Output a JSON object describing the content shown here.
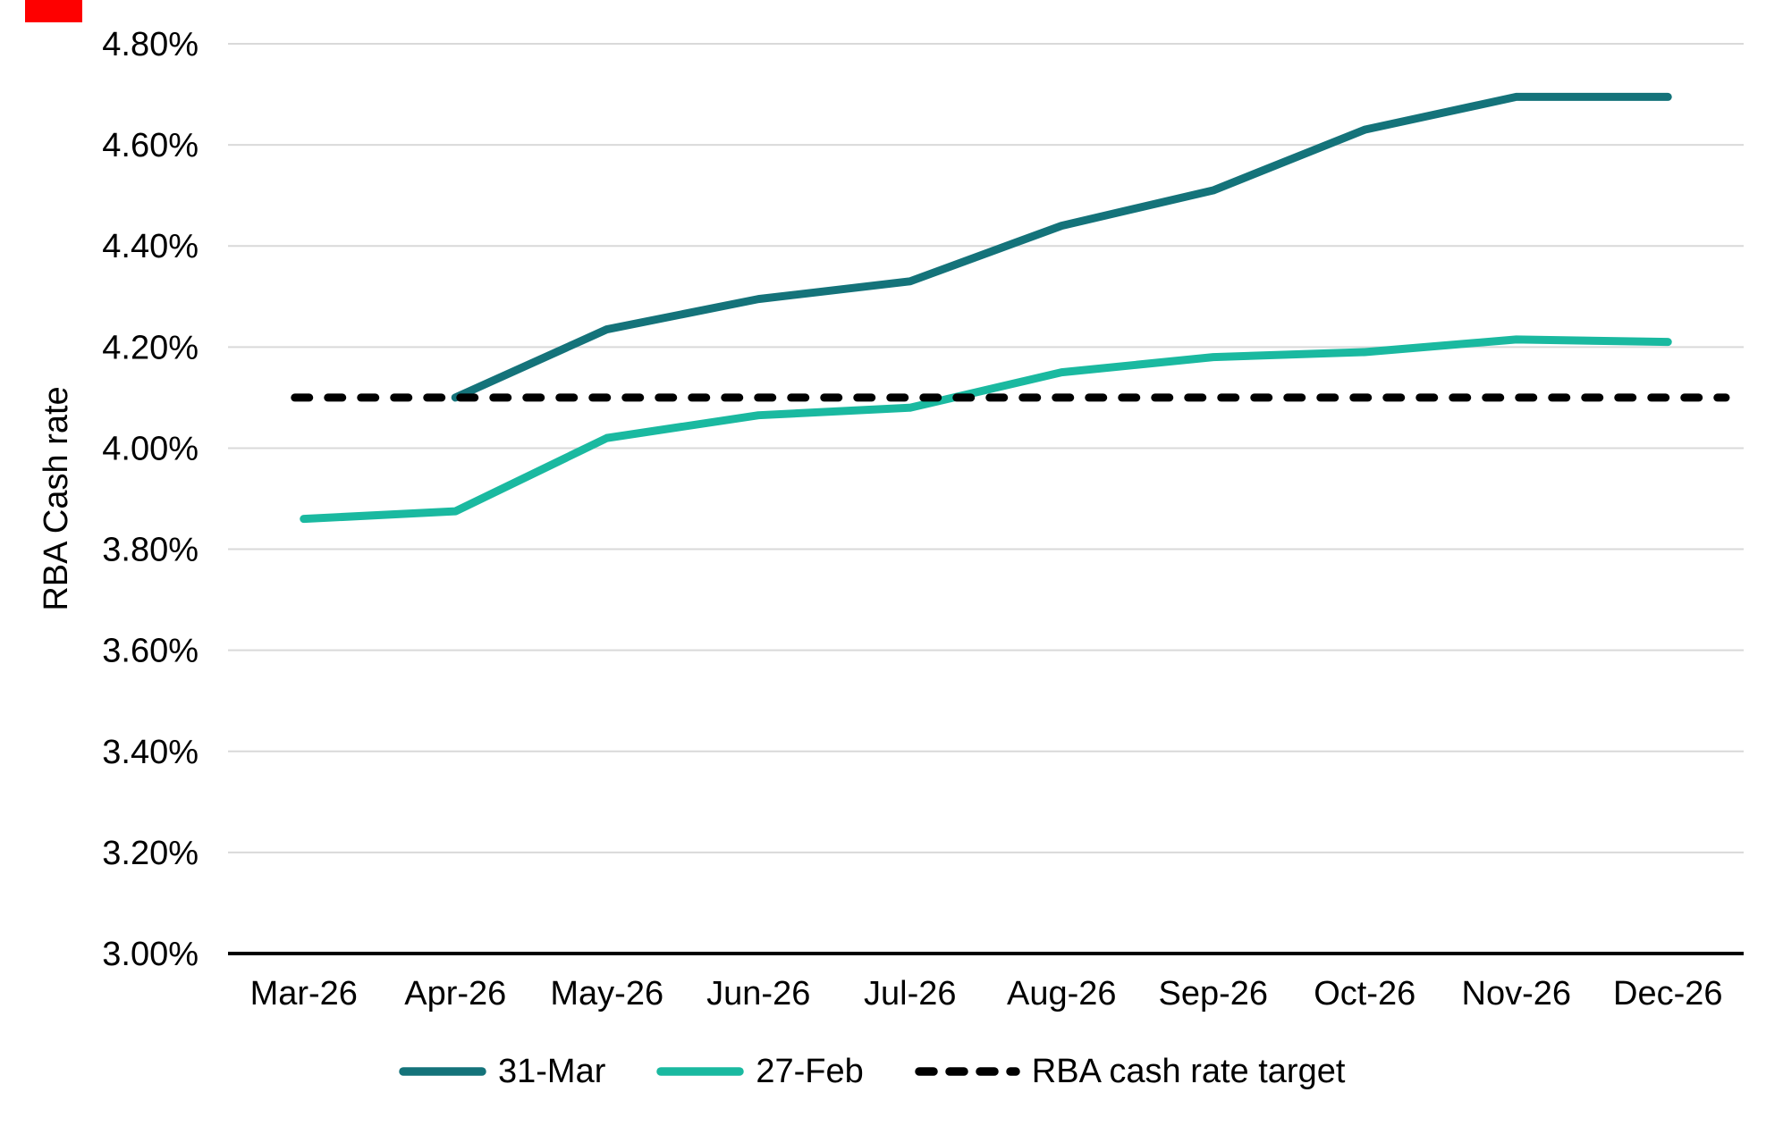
{
  "page": {
    "background": "#ffffff"
  },
  "chart_data": {
    "type": "line",
    "title": "",
    "xlabel": "",
    "ylabel": "RBA Cash rate",
    "categories": [
      "Mar-26",
      "Apr-26",
      "May-26",
      "Jun-26",
      "Jul-26",
      "Aug-26",
      "Sep-26",
      "Oct-26",
      "Nov-26",
      "Dec-26"
    ],
    "y_axis": {
      "min": 3.0,
      "max": 4.8,
      "tick_step": 0.2,
      "tick_labels": [
        "3.00%",
        "3.20%",
        "3.40%",
        "3.60%",
        "3.80%",
        "4.00%",
        "4.20%",
        "4.40%",
        "4.60%",
        "4.80%"
      ]
    },
    "grid": true,
    "legend_position": "bottom",
    "colors": {
      "series_dark_teal": "#14737a",
      "series_light_teal": "#1ab9a0",
      "target_black": "#000000",
      "gridline_gray": "#d9d9d9",
      "axis_black": "#000000"
    },
    "series": [
      {
        "name": "31-Mar",
        "color": "#14737a",
        "line_style": "solid",
        "values": [
          null,
          4.1,
          4.235,
          4.295,
          4.33,
          4.44,
          4.51,
          4.63,
          4.695,
          4.695
        ]
      },
      {
        "name": "27-Feb",
        "color": "#1ab9a0",
        "line_style": "solid",
        "values": [
          3.86,
          3.875,
          4.02,
          4.065,
          4.08,
          4.15,
          4.18,
          4.19,
          4.215,
          4.21
        ]
      },
      {
        "name": "RBA cash rate target",
        "color": "#000000",
        "line_style": "dashed",
        "span": "full-width",
        "values": [
          4.1,
          4.1,
          4.1,
          4.1,
          4.1,
          4.1,
          4.1,
          4.1,
          4.1,
          4.1
        ]
      }
    ]
  }
}
